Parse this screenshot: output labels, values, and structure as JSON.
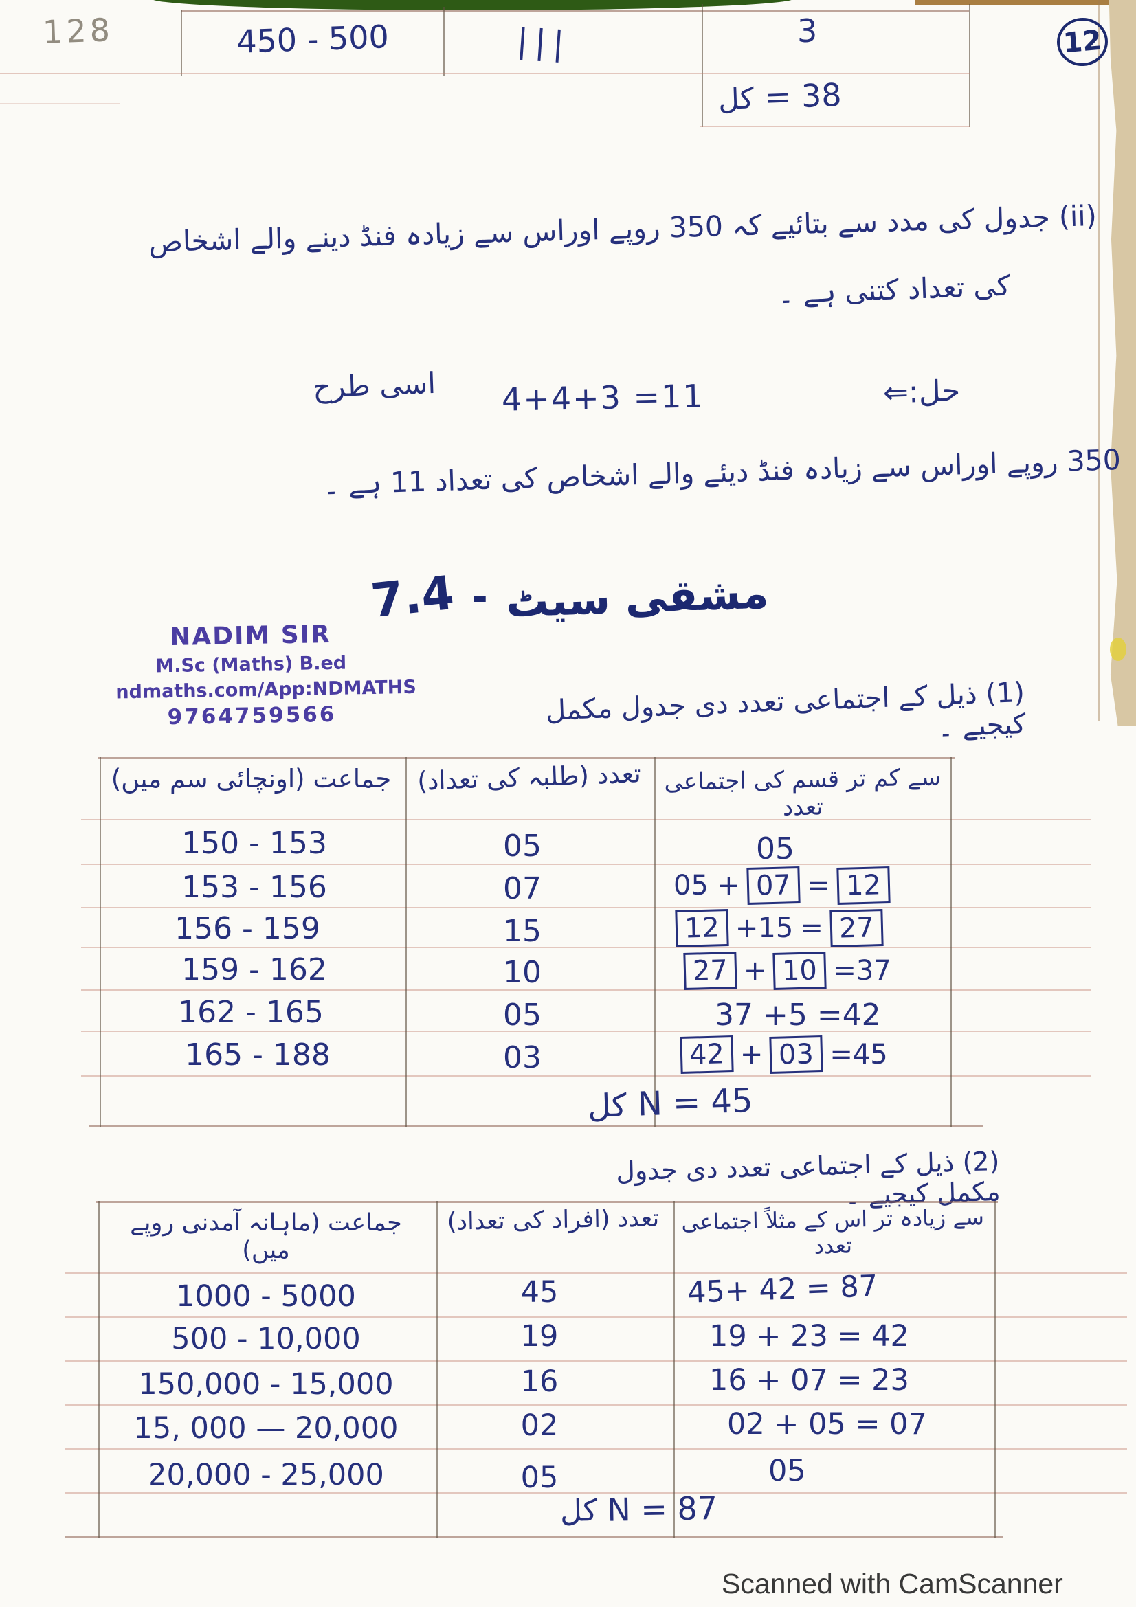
{
  "page": {
    "corner_number": "128",
    "circled_number": "12",
    "footer": "Scanned with CamScanner"
  },
  "top_table": {
    "class_interval": "450 - 500",
    "tally": "|||",
    "frequency": "3",
    "total": {
      "label": "کل",
      "value": "= 38"
    }
  },
  "question_ii": {
    "line1": "(ii) جدول کی مدد سے بتائیے کہ 350 روپے اوراس سے زیادہ فنڈ دینے والے اشخاص",
    "line2": "کی تعداد کتنی ہے ۔"
  },
  "solution": {
    "label": "حل:⇐",
    "equation": "4+4+3 =11",
    "similarly": "اسی طرح",
    "statement": "350 روپے اوراس سے زیادہ فنڈ دیئے والے اشخاص کی تعداد 11 ہے ۔"
  },
  "heading": {
    "number": "7.4",
    "dash": "-",
    "title": "مشقی سیٹ"
  },
  "stamp": {
    "name": "NADIM SIR",
    "degree": "M.Sc  (Maths) B.ed",
    "site": "ndmaths.com/App:NDMATHS",
    "phone": "9764759566"
  },
  "question_1": "(1) ذیل کے اجتماعی تعدد دی جدول مکمل کیجیے ۔",
  "table1": {
    "header_class": "جماعت (اونچائی سم میں)",
    "header_freq": "تعدد (طلبہ کی تعداد)",
    "header_cum": "سے کم تر قسم کی اجتماعی تعدد",
    "rows": [
      {
        "class_interval": "150 - 153",
        "frequency": "05"
      },
      {
        "class_interval": "153 - 156",
        "frequency": "07"
      },
      {
        "class_interval": "156 - 159",
        "frequency": "15"
      },
      {
        "class_interval": "159 - 162",
        "frequency": "10"
      },
      {
        "class_interval": "162 - 165",
        "frequency": "05"
      },
      {
        "class_interval": "165 - 188",
        "frequency": "03"
      }
    ],
    "cum_rows": [
      [
        {
          "t": "05"
        }
      ],
      [
        {
          "t": "05 +"
        },
        {
          "t": "07",
          "box": true
        },
        {
          "t": "="
        },
        {
          "t": "12",
          "box": true
        }
      ],
      [
        {
          "t": "12",
          "box": true
        },
        {
          "t": "+15"
        },
        {
          "t": "="
        },
        {
          "t": "27",
          "box": true
        }
      ],
      [
        {
          "t": "27",
          "box": true
        },
        {
          "t": "+"
        },
        {
          "t": "10",
          "box": true
        },
        {
          "t": "=37"
        }
      ],
      [
        {
          "t": "37 +5 =42"
        }
      ],
      [
        {
          "t": "42",
          "box": true
        },
        {
          "t": "+"
        },
        {
          "t": "03",
          "box": true
        },
        {
          "t": "=45"
        }
      ]
    ],
    "total": {
      "label": "کل",
      "value": "N = 45"
    }
  },
  "question_2": "(2) ذیل کے اجتماعی تعدد دی جدول مکمل کیجیے ۔",
  "table2": {
    "header_class": "جماعت (ماہانہ آمدنی روپے میں)",
    "header_freq": "تعدد (افراد کی تعداد)",
    "header_cum": "سے زیادہ تر اس کے مثلاً اجتماعی تعدد",
    "rows": [
      {
        "class_interval": "1000 - 5000",
        "frequency": "45",
        "cumulative": "45+ 42 = 87"
      },
      {
        "class_interval": "500 - 10,000",
        "frequency": "19",
        "cumulative": "19 + 23 = 42"
      },
      {
        "class_interval": "150,000 - 15,000",
        "frequency": "16",
        "cumulative": "16 + 07  = 23"
      },
      {
        "class_interval": "15, 000 — 20,000",
        "frequency": "02",
        "cumulative": "02 + 05 = 07"
      },
      {
        "class_interval": "20,000 - 25,000",
        "frequency": "05",
        "cumulative": "05"
      }
    ],
    "total": {
      "label": "کل",
      "value": "N = 87"
    }
  }
}
